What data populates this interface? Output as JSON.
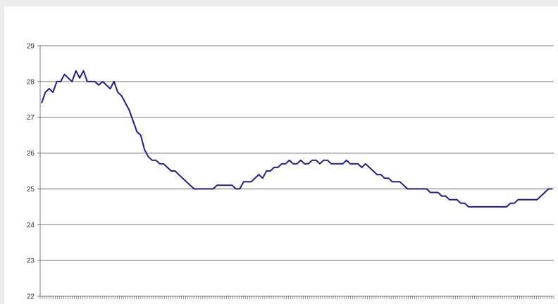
{
  "chart_data": {
    "type": "line",
    "title": "",
    "xlabel": "",
    "ylabel": "",
    "ylim": [
      22,
      29
    ],
    "yticks": [
      "22",
      "23",
      "24",
      "25",
      "26",
      "27",
      "28",
      "29"
    ],
    "grid": true,
    "legend": "none",
    "series": [
      {
        "color": "#1f1f7a",
        "values": [
          27.4,
          27.7,
          27.8,
          27.7,
          28.0,
          28.0,
          28.2,
          28.1,
          28.0,
          28.3,
          28.1,
          28.3,
          28.0,
          28.0,
          28.0,
          27.9,
          28.0,
          27.9,
          27.8,
          28.0,
          27.7,
          27.6,
          27.4,
          27.2,
          26.9,
          26.6,
          26.5,
          26.1,
          25.9,
          25.8,
          25.8,
          25.7,
          25.7,
          25.6,
          25.5,
          25.5,
          25.4,
          25.3,
          25.2,
          25.1,
          25.0,
          25.0,
          25.0,
          25.0,
          25.0,
          25.0,
          25.1,
          25.1,
          25.1,
          25.1,
          25.1,
          25.0,
          25.0,
          25.2,
          25.2,
          25.2,
          25.3,
          25.4,
          25.3,
          25.5,
          25.5,
          25.6,
          25.6,
          25.7,
          25.7,
          25.8,
          25.7,
          25.7,
          25.8,
          25.7,
          25.7,
          25.8,
          25.8,
          25.7,
          25.8,
          25.8,
          25.7,
          25.7,
          25.7,
          25.7,
          25.8,
          25.7,
          25.7,
          25.7,
          25.6,
          25.7,
          25.6,
          25.5,
          25.4,
          25.4,
          25.3,
          25.3,
          25.2,
          25.2,
          25.2,
          25.1,
          25.0,
          25.0,
          25.0,
          25.0,
          25.0,
          25.0,
          24.9,
          24.9,
          24.9,
          24.8,
          24.8,
          24.7,
          24.7,
          24.7,
          24.6,
          24.6,
          24.5,
          24.5,
          24.5,
          24.5,
          24.5,
          24.5,
          24.5,
          24.5,
          24.5,
          24.5,
          24.5,
          24.6,
          24.6,
          24.7,
          24.7,
          24.7,
          24.7,
          24.7,
          24.7,
          24.8,
          24.9,
          25.0,
          25.0
        ]
      }
    ]
  }
}
